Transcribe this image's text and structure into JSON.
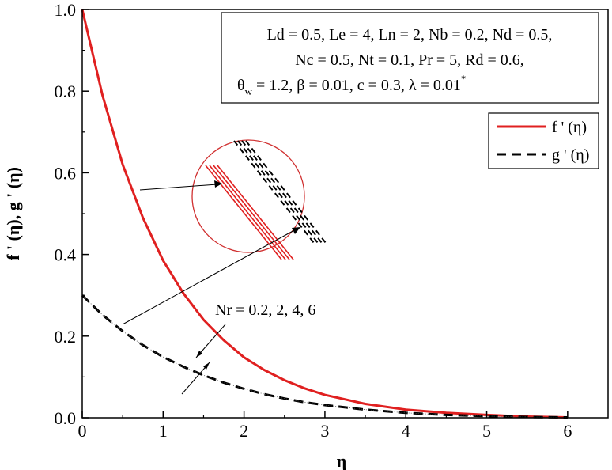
{
  "chart_data": {
    "type": "line",
    "xlabel": "η",
    "ylabel": "f ' (η), g ' (η)",
    "xlim": [
      0,
      6.5
    ],
    "ylim": [
      0,
      1.0
    ],
    "xticks": [
      "0",
      "1",
      "2",
      "3",
      "4",
      "5",
      "6"
    ],
    "yticks": [
      "0.0",
      "0.2",
      "0.4",
      "0.6",
      "0.8",
      "1.0"
    ],
    "grid": false,
    "legend_position": "top-right",
    "parameters": [
      "Ld = 0.5, Le = 4, Ln = 2, Nb = 0.2, Nd = 0.5,",
      "Nc = 0.5, Nt = 0.1, Pr = 5, Rd = 0.6,",
      "β = 0.01, c = 0.3, λ = 0.01"
    ],
    "param_theta_main": "θ",
    "param_theta_sub": "w",
    "param_theta_value": " = 1.2, ",
    "param_lambda_sup": "*",
    "annotation": "Nr = 0.2, 2, 4, 6",
    "series": [
      {
        "name": "f ' (η)",
        "color": "#e02020",
        "style": "solid",
        "x": [
          0,
          0.25,
          0.5,
          0.75,
          1,
          1.25,
          1.5,
          1.75,
          2,
          2.25,
          2.5,
          2.75,
          3,
          3.5,
          4,
          4.5,
          5,
          5.5,
          6
        ],
        "y": [
          1.0,
          0.79,
          0.62,
          0.49,
          0.385,
          0.305,
          0.24,
          0.19,
          0.148,
          0.117,
          0.092,
          0.072,
          0.056,
          0.034,
          0.02,
          0.012,
          0.007,
          0.003,
          0.001
        ]
      },
      {
        "name": "g ' (η)",
        "color": "#000000",
        "style": "dashed",
        "x": [
          0,
          0.25,
          0.5,
          0.75,
          1,
          1.25,
          1.5,
          1.75,
          2,
          2.25,
          2.5,
          2.75,
          3,
          3.5,
          4,
          4.5,
          5,
          5.5,
          6
        ],
        "y": [
          0.3,
          0.252,
          0.212,
          0.178,
          0.149,
          0.125,
          0.104,
          0.086,
          0.071,
          0.058,
          0.047,
          0.038,
          0.031,
          0.02,
          0.012,
          0.007,
          0.004,
          0.002,
          0.001
        ]
      }
    ]
  }
}
